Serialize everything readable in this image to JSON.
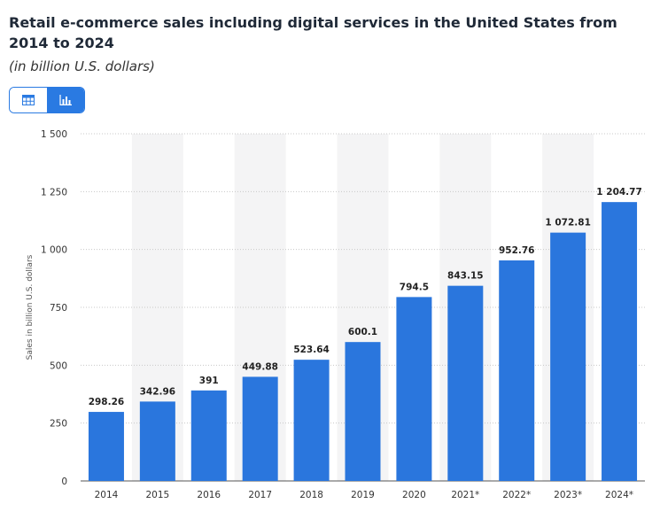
{
  "header": {
    "title": "Retail e-commerce sales including digital services in the United States from 2014 to 2024",
    "subtitle": "(in billion U.S. dollars)"
  },
  "view_toggle": {
    "options": [
      {
        "name": "table-view-button",
        "icon": "table-icon",
        "selected": false
      },
      {
        "name": "chart-view-button",
        "icon": "bar-chart-icon",
        "selected": true
      }
    ]
  },
  "colors": {
    "bar": "#2a76dd",
    "accent": "#2a7ae2",
    "band": "#f4f4f5",
    "grid": "#c8c8c8"
  },
  "chart_data": {
    "type": "bar",
    "categories": [
      "2014",
      "2015",
      "2016",
      "2017",
      "2018",
      "2019",
      "2020",
      "2021*",
      "2022*",
      "2023*",
      "2024*"
    ],
    "values": [
      298.26,
      342.96,
      391,
      449.88,
      523.64,
      600.1,
      794.5,
      843.15,
      952.76,
      1072.81,
      1204.77
    ],
    "value_labels": [
      "298.26",
      "342.96",
      "391",
      "449.88",
      "523.64",
      "600.1",
      "794.5",
      "843.15",
      "952.76",
      "1 072.81",
      "1 204.77"
    ],
    "ylabel": "Sales in billion U.S. dollars",
    "xlabel": "",
    "ylim": [
      0,
      1500
    ],
    "yticks": [
      0,
      250,
      500,
      750,
      1000,
      1250,
      1500
    ],
    "ytick_labels": [
      "0",
      "250",
      "500",
      "750",
      "1 000",
      "1 250",
      "1 500"
    ],
    "grid": true,
    "alternating_bands": true
  }
}
